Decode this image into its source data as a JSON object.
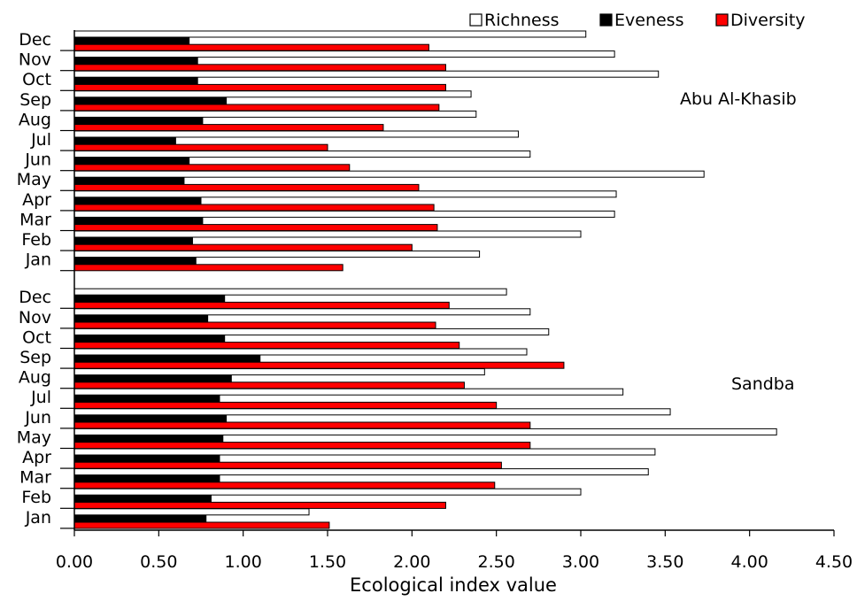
{
  "chart_data": {
    "type": "bar",
    "orientation": "horizontal",
    "xlabel": "Ecological index value",
    "xlim": [
      0,
      4.5
    ],
    "xticks": [
      "0.00",
      "0.50",
      "1.00",
      "1.50",
      "2.00",
      "2.50",
      "3.00",
      "3.50",
      "4.00",
      "4.50"
    ],
    "grid": false,
    "legend_position": "top-right",
    "series": [
      {
        "name": "Richness",
        "color": "#ffffff",
        "stroke": "#000000"
      },
      {
        "name": "Eveness",
        "color": "#000000",
        "stroke": "#000000"
      },
      {
        "name": "Diversity",
        "color": "#ff0000",
        "stroke": "#000000"
      }
    ],
    "groups": [
      {
        "label": "Abu Al-Khasib",
        "categories": [
          "Dec",
          "Nov",
          "Oct",
          "Sep",
          "Aug",
          "Jul",
          "Jun",
          "May",
          "Apr",
          "Mar",
          "Feb",
          "Jan"
        ],
        "richness": [
          3.03,
          3.2,
          3.46,
          2.35,
          2.38,
          2.63,
          2.7,
          3.73,
          3.21,
          3.2,
          3.0,
          2.4
        ],
        "eveness": [
          0.68,
          0.73,
          0.73,
          0.9,
          0.76,
          0.6,
          0.68,
          0.65,
          0.75,
          0.76,
          0.7,
          0.72
        ],
        "diversity": [
          2.1,
          2.2,
          2.2,
          2.16,
          1.83,
          1.5,
          1.63,
          2.04,
          2.13,
          2.15,
          2.0,
          1.59
        ]
      },
      {
        "label": "Sandba",
        "categories": [
          "Dec",
          "Nov",
          "Oct",
          "Sep",
          "Aug",
          "Jul",
          "Jun",
          "May",
          "Apr",
          "Mar",
          "Feb",
          "Jan"
        ],
        "richness": [
          2.56,
          2.7,
          2.81,
          2.68,
          2.43,
          3.25,
          3.53,
          4.16,
          3.44,
          3.4,
          3.0,
          1.39
        ],
        "eveness": [
          0.89,
          0.79,
          0.89,
          1.1,
          0.93,
          0.86,
          0.9,
          0.88,
          0.86,
          0.86,
          0.81,
          0.78
        ],
        "diversity": [
          2.22,
          2.14,
          2.28,
          2.9,
          2.31,
          2.5,
          2.7,
          2.7,
          2.53,
          2.49,
          2.2,
          1.51
        ]
      }
    ]
  }
}
